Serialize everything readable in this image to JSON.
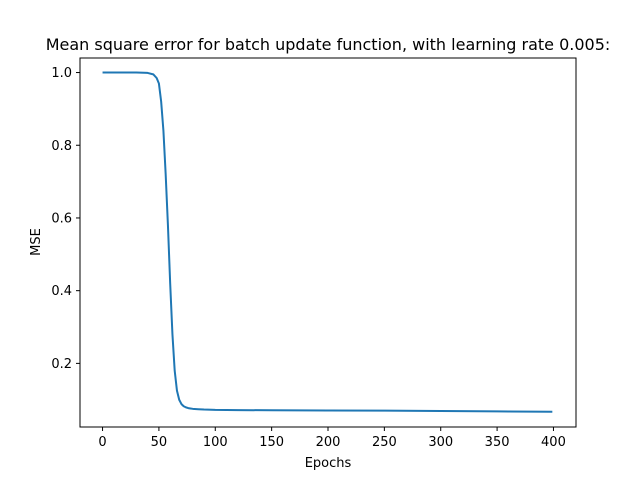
{
  "chart_data": {
    "type": "line",
    "title": "Mean square error for batch update function, with learning rate 0.005:",
    "xlabel": "Epochs",
    "ylabel": "MSE",
    "xlim": [
      -20,
      420
    ],
    "ylim": [
      0.025,
      1.04
    ],
    "grid": false,
    "legend": "none",
    "x_ticks": [
      0,
      50,
      100,
      150,
      200,
      250,
      300,
      350,
      400
    ],
    "y_ticks": [
      0.2,
      0.4,
      0.6,
      0.8,
      1.0
    ],
    "x_tick_labels": [
      "0",
      "50",
      "100",
      "150",
      "200",
      "250",
      "300",
      "350",
      "400"
    ],
    "y_tick_labels": [
      "0.2",
      "0.4",
      "0.6",
      "0.8",
      "1.0"
    ],
    "series": [
      {
        "color": "#1f77b4",
        "x": [
          0,
          10,
          20,
          30,
          40,
          45,
          48,
          50,
          52,
          54,
          56,
          58,
          60,
          62,
          64,
          66,
          68,
          70,
          72,
          74,
          76,
          78,
          80,
          85,
          90,
          100,
          120,
          150,
          200,
          250,
          300,
          350,
          399
        ],
        "y": [
          1.0,
          1.0,
          1.0,
          1.0,
          0.999,
          0.995,
          0.985,
          0.97,
          0.92,
          0.84,
          0.72,
          0.58,
          0.42,
          0.28,
          0.18,
          0.125,
          0.1,
          0.088,
          0.082,
          0.079,
          0.077,
          0.076,
          0.075,
          0.074,
          0.073,
          0.072,
          0.0715,
          0.071,
          0.0705,
          0.07,
          0.069,
          0.068,
          0.067
        ]
      }
    ]
  }
}
